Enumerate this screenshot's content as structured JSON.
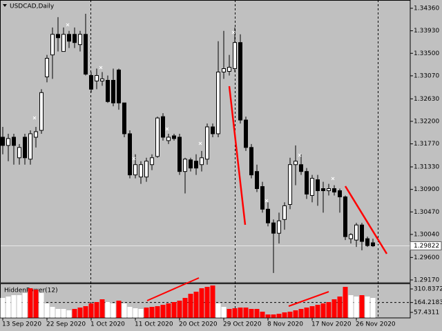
{
  "chart_data": [
    {
      "type": "candlestick",
      "title": "USDCAD,Daily",
      "categories": [
        "13 Sep 2020",
        null,
        null,
        null,
        null,
        null,
        null,
        null,
        "22 Sep 2020",
        null,
        null,
        null,
        null,
        null,
        null,
        null,
        "1 Oct 2020",
        null,
        null,
        null,
        null,
        null,
        null,
        null,
        "11 Oct 2020",
        null,
        null,
        null,
        null,
        null,
        null,
        null,
        "20 Oct 2020",
        null,
        null,
        null,
        null,
        null,
        null,
        null,
        "29 Oct 2020",
        null,
        null,
        null,
        null,
        null,
        null,
        null,
        "8 Nov 2020",
        null,
        null,
        null,
        null,
        null,
        null,
        null,
        "17 Nov 2020",
        null,
        null,
        null,
        null,
        null,
        null,
        null,
        "26 Nov 2020",
        null,
        null,
        null
      ],
      "open": [
        1.31897,
        1.3174,
        1.31897,
        1.31504,
        1.31897,
        1.31478,
        1.31897,
        1.32028,
        1.3305,
        1.33469,
        1.33862,
        1.33535,
        1.33862,
        1.33862,
        1.33666,
        1.33862,
        1.33076,
        1.32971,
        1.32971,
        1.32984,
        1.32984,
        1.33181,
        1.32552,
        1.31963,
        1.31177,
        1.31137,
        1.31137,
        1.31373,
        1.3153,
        1.3229,
        1.31832,
        1.31923,
        1.31897,
        1.31242,
        1.31465,
        1.31439,
        1.31373,
        1.31478,
        1.32094,
        1.31963,
        1.33142,
        1.33155,
        1.33207,
        1.33705,
        1.32225,
        1.31701,
        1.31242,
        1.30954,
        1.30522,
        1.3026,
        1.30063,
        1.30325,
        1.30613,
        1.31373,
        1.31373,
        1.31242,
        1.30784,
        1.31085,
        1.30915,
        1.30875,
        1.30915,
        1.30875,
        1.30757,
        1.29958,
        1.29932,
        1.3022,
        1.29958,
        1.2988
      ],
      "high": [
        1.32094,
        1.31963,
        1.31963,
        1.31766,
        1.31963,
        1.32028,
        1.32094,
        1.32814,
        1.33469,
        1.33993,
        1.3419,
        1.33993,
        1.33928,
        1.33993,
        1.33928,
        1.34255,
        1.33142,
        1.33207,
        1.33142,
        1.33076,
        1.33207,
        1.33207,
        1.32552,
        1.32028,
        1.3157,
        1.31439,
        1.31504,
        1.3157,
        1.3229,
        1.32356,
        1.31963,
        1.31963,
        1.31963,
        1.31504,
        1.31504,
        1.3157,
        1.31635,
        1.32159,
        1.32159,
        1.33731,
        1.33928,
        1.33469,
        1.33993,
        1.33862,
        1.3229,
        1.31766,
        1.31373,
        1.31046,
        1.30653,
        1.30325,
        1.30456,
        1.30653,
        1.31504,
        1.3174,
        1.3157,
        1.31308,
        1.31177,
        1.31177,
        1.31046,
        1.31006,
        1.3098,
        1.30915,
        1.30784,
        1.30063,
        1.3026,
        1.3026,
        1.29998,
        1.29958
      ],
      "low": [
        1.3157,
        1.31439,
        1.31373,
        1.31373,
        1.31373,
        1.31373,
        1.31701,
        1.31963,
        1.32945,
        1.33011,
        1.33535,
        1.33535,
        1.336,
        1.336,
        1.33535,
        1.33076,
        1.32749,
        1.32814,
        1.3288,
        1.32552,
        1.32487,
        1.32421,
        1.31897,
        1.31111,
        1.31111,
        1.31006,
        1.31046,
        1.31268,
        1.31504,
        1.31832,
        1.31766,
        1.31832,
        1.31177,
        1.30823,
        1.31242,
        1.31177,
        1.31242,
        1.31373,
        1.31897,
        1.31897,
        1.33011,
        1.33076,
        1.33142,
        1.32159,
        1.31635,
        1.31111,
        1.30849,
        1.30456,
        1.30194,
        1.29303,
        1.29867,
        1.30129,
        1.30522,
        1.3098,
        1.31177,
        1.30718,
        1.30653,
        1.30587,
        1.30456,
        1.30784,
        1.30784,
        1.30456,
        1.29932,
        1.29867,
        1.29801,
        1.29736,
        1.29801,
        1.29801
      ],
      "close": [
        1.3174,
        1.31871,
        1.3174,
        1.31701,
        1.31504,
        1.31963,
        1.32002,
        1.32749,
        1.33404,
        1.33862,
        1.33797,
        1.33862,
        1.33731,
        1.33705,
        1.33862,
        1.33102,
        1.32814,
        1.33076,
        1.33011,
        1.32578,
        1.32552,
        1.32552,
        1.31963,
        1.31177,
        1.31373,
        1.31373,
        1.31439,
        1.31504,
        1.32264,
        1.31897,
        1.31897,
        1.31871,
        1.31242,
        1.31478,
        1.31308,
        1.31308,
        1.31504,
        1.32094,
        1.31963,
        1.33142,
        1.33207,
        1.33233,
        1.33705,
        1.32225,
        1.31701,
        1.31177,
        1.30915,
        1.30522,
        1.3026,
        1.30063,
        1.30299,
        1.30587,
        1.31373,
        1.31439,
        1.31242,
        1.3081,
        1.31111,
        1.30875,
        1.30875,
        1.30915,
        1.30849,
        1.30757,
        1.29998,
        1.30037,
        1.3022,
        1.29906,
        1.29827,
        1.29822
      ],
      "up_color": "#ffffff",
      "down_color": "#000000",
      "ylim": [
        1.29117,
        1.34518
      ],
      "yticks": [
        {
          "value": 1.3436,
          "label": "1.34360"
        },
        {
          "value": 1.3393,
          "label": "1.33930"
        },
        {
          "value": 1.335,
          "label": "1.33500"
        },
        {
          "value": 1.3307,
          "label": "1.33070"
        },
        {
          "value": 1.3263,
          "label": "1.32630"
        },
        {
          "value": 1.322,
          "label": "1.32200"
        },
        {
          "value": 1.3177,
          "label": "1.31770"
        },
        {
          "value": 1.3133,
          "label": "1.31330"
        },
        {
          "value": 1.309,
          "label": "1.30900"
        },
        {
          "value": 1.3047,
          "label": "1.30470"
        },
        {
          "value": 1.3004,
          "label": "1.30040"
        },
        {
          "value": 1.296,
          "label": "1.29600"
        },
        {
          "value": 1.2917,
          "label": "1.29170"
        }
      ],
      "last_price": 1.29822
    },
    {
      "type": "bar",
      "title": "HiddenPower(12)",
      "values": [
        213.9,
        228.8,
        243.7,
        243.7,
        266.1,
        318.2,
        303.3,
        266.1,
        154.3,
        117.0,
        94.7,
        94.7,
        79.7,
        94.7,
        109.6,
        124.5,
        154.3,
        169.2,
        199.0,
        169.2,
        154.3,
        184.1,
        154.3,
        117.0,
        102.1,
        94.7,
        109.6,
        117.0,
        124.5,
        139.4,
        154.3,
        169.2,
        184.1,
        213.9,
        258.6,
        281.0,
        318.2,
        333.2,
        348.1,
        154.3,
        117.0,
        94.7,
        102.1,
        109.6,
        109.6,
        94.7,
        94.7,
        64.8,
        35.0,
        35.0,
        42.5,
        57.4,
        64.8,
        79.7,
        94.7,
        109.6,
        124.5,
        139.4,
        154.3,
        169.2,
        199.0,
        228.8,
        333.2,
        243.7,
        228.8,
        243.7,
        228.8,
        213.9
      ],
      "bar_colors": [
        "#ffffff",
        "#ffffff",
        "#ffffff",
        "#ffffff",
        "#ffffff",
        "#ff0000",
        "#ff0000",
        "#ffffff",
        "#ffffff",
        "#ffffff",
        "#ffffff",
        "#ffffff",
        "#ffffff",
        "#ff0000",
        "#ff0000",
        "#ff0000",
        "#ff0000",
        "#ff0000",
        "#ff0000",
        "#ffffff",
        "#ffffff",
        "#ff0000",
        "#ffffff",
        "#ffffff",
        "#ffffff",
        "#ffffff",
        "#ff0000",
        "#ff0000",
        "#ff0000",
        "#ff0000",
        "#ff0000",
        "#ff0000",
        "#ff0000",
        "#ff0000",
        "#ff0000",
        "#ff0000",
        "#ff0000",
        "#ff0000",
        "#ff0000",
        "#ffffff",
        "#ffffff",
        "#ff0000",
        "#ff0000",
        "#ff0000",
        "#ff0000",
        "#ff0000",
        "#ff0000",
        "#ff0000",
        "#ff0000",
        "#ff0000",
        "#ff0000",
        "#ff0000",
        "#ff0000",
        "#ff0000",
        "#ff0000",
        "#ff0000",
        "#ff0000",
        "#ff0000",
        "#ff0000",
        "#ff0000",
        "#ff0000",
        "#ff0000",
        "#ff0000",
        "#ffffff",
        "#ffffff",
        "#ff0000",
        "#ffffff",
        "#ffffff"
      ],
      "ylim": [
        0,
        363
      ],
      "yticks": [
        310.8372,
        164.2183,
        57.4311
      ],
      "levels": [
        164.2183
      ]
    }
  ]
}
